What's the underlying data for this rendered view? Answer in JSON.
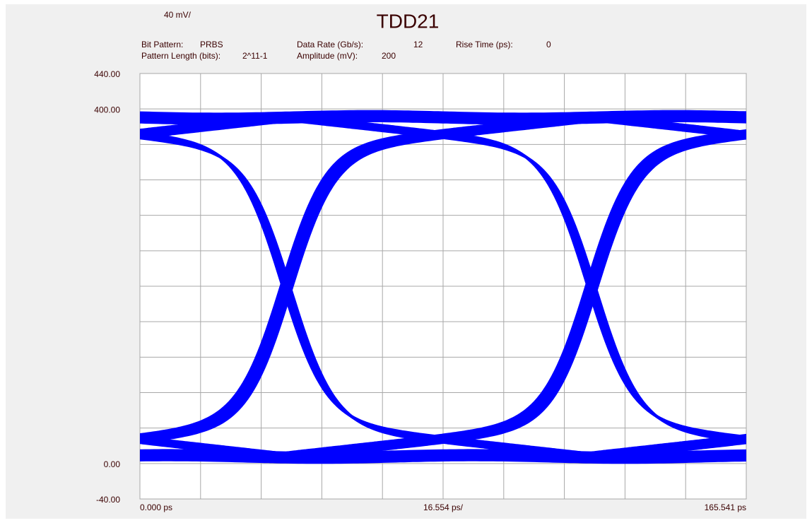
{
  "chart_data": {
    "type": "eye",
    "title": "TDD21",
    "ydivision": {
      "value": 40,
      "label": "40 mV/"
    },
    "xdivision": {
      "value": 16.554,
      "label": "16.554 ps/"
    },
    "fields": [
      {
        "label": "Bit Pattern:",
        "value": "PRBS"
      },
      {
        "label": "Data Rate (Gb/s):",
        "value": 12
      },
      {
        "label": "Rise Time (ps):",
        "value": 0
      },
      {
        "label": "Pattern Length (bits):",
        "value": "2^11-1"
      },
      {
        "label": "Amplitude (mV):",
        "value": 200
      }
    ],
    "xlim": [
      0,
      165.541
    ],
    "xticks": [
      {
        "value": 0,
        "label": "0.000 ps"
      },
      {
        "value": 165.541,
        "label": "165.541 ps"
      }
    ],
    "ylim": [
      -40,
      440
    ],
    "yticks": [
      {
        "value": 440,
        "label": "440.00"
      },
      {
        "value": 400,
        "label": "400.00"
      },
      {
        "value": 0,
        "label": "0.00"
      },
      {
        "value": -40,
        "label": "-40.00"
      }
    ],
    "grid": true
  }
}
